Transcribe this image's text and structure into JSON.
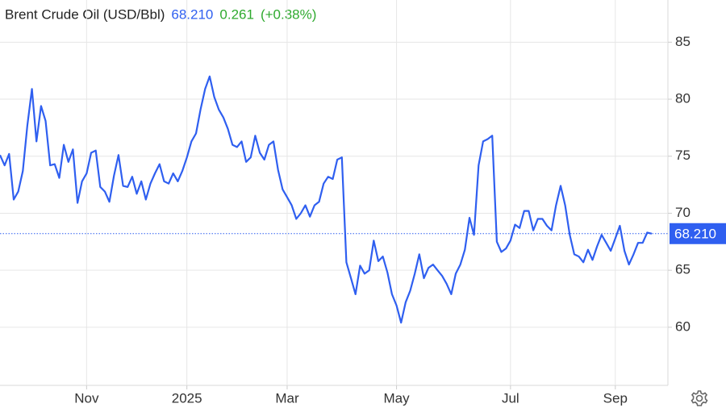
{
  "chart_data": {
    "type": "line",
    "title": "Brent Crude Oil (USD/Bbl)",
    "price_label": "68.210",
    "change_label": "0.261",
    "change_pct_label": "(+0.38%)",
    "categories": [
      null,
      null,
      null,
      null,
      null,
      null,
      null,
      null,
      null,
      null,
      null,
      null,
      null,
      null,
      null,
      null,
      null,
      null,
      null,
      "Nov",
      null,
      null,
      null,
      null,
      null,
      null,
      null,
      null,
      null,
      null,
      null,
      null,
      null,
      null,
      null,
      null,
      null,
      null,
      null,
      null,
      null,
      "2025",
      null,
      null,
      null,
      null,
      null,
      null,
      null,
      null,
      null,
      null,
      null,
      null,
      null,
      null,
      null,
      null,
      null,
      null,
      null,
      null,
      null,
      "Mar",
      null,
      null,
      null,
      null,
      null,
      null,
      null,
      null,
      null,
      null,
      null,
      null,
      null,
      null,
      null,
      null,
      null,
      null,
      null,
      null,
      null,
      null,
      null,
      "May",
      null,
      null,
      null,
      null,
      null,
      null,
      null,
      null,
      null,
      null,
      null,
      null,
      null,
      null,
      null,
      null,
      null,
      null,
      null,
      null,
      null,
      null,
      null,
      null,
      "Jul",
      null,
      null,
      null,
      null,
      null,
      null,
      null,
      null,
      null,
      null,
      null,
      null,
      null,
      null,
      null,
      null,
      null,
      null,
      null,
      null,
      null,
      null,
      "Sep",
      null,
      null,
      null,
      null,
      null,
      null,
      null,
      null
    ],
    "series": [
      {
        "name": "Brent Crude Oil",
        "color": "#2f5ff0",
        "values": [
          75.1,
          74.2,
          75.2,
          71.2,
          71.9,
          73.7,
          77.7,
          80.9,
          76.3,
          79.4,
          78.1,
          74.2,
          74.3,
          73.1,
          76.0,
          74.5,
          75.6,
          70.9,
          72.8,
          73.5,
          75.3,
          75.5,
          72.3,
          71.9,
          71.0,
          73.3,
          75.1,
          72.4,
          72.3,
          73.2,
          71.7,
          72.8,
          71.2,
          72.6,
          73.5,
          74.3,
          72.8,
          72.6,
          73.5,
          72.8,
          73.7,
          74.9,
          76.3,
          77.0,
          79.1,
          80.9,
          82.0,
          80.2,
          79.1,
          78.4,
          77.4,
          76.0,
          75.8,
          76.3,
          74.5,
          74.9,
          76.8,
          75.3,
          74.7,
          76.0,
          76.3,
          73.8,
          72.1,
          71.4,
          70.7,
          69.5,
          70.0,
          70.7,
          69.7,
          70.7,
          71.0,
          72.6,
          73.2,
          73.0,
          74.7,
          74.9,
          65.7,
          64.3,
          62.9,
          65.4,
          64.7,
          65.0,
          67.6,
          65.8,
          66.2,
          64.8,
          62.9,
          61.9,
          60.4,
          62.2,
          63.2,
          64.7,
          66.4,
          64.3,
          65.2,
          65.5,
          65.0,
          64.5,
          63.8,
          62.9,
          64.7,
          65.5,
          66.8,
          69.6,
          68.1,
          74.2,
          76.3,
          76.5,
          76.8,
          67.5,
          66.6,
          66.9,
          67.6,
          69.0,
          68.7,
          70.2,
          70.2,
          68.5,
          69.5,
          69.5,
          68.9,
          68.5,
          70.7,
          72.4,
          70.7,
          68.1,
          66.4,
          66.2,
          65.7,
          66.8,
          65.9,
          67.1,
          68.1,
          67.4,
          66.7,
          67.8,
          68.9,
          66.7,
          65.5,
          66.4,
          67.4,
          67.4,
          68.3,
          68.21
        ]
      }
    ],
    "ylim": [
      54.9,
      88.7
    ],
    "yticks": [
      60,
      65,
      70,
      75,
      80,
      85
    ],
    "grid": true
  }
}
